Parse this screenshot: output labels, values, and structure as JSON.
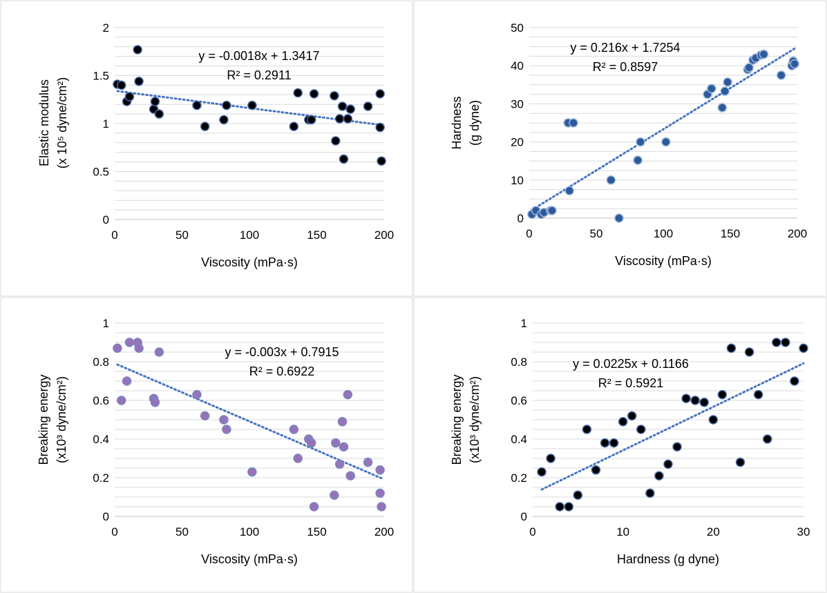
{
  "chart_data": [
    {
      "type": "scatter",
      "title": "",
      "xlabel": "Viscosity (mPa·s)",
      "ylabel_lines": [
        "Elastic modulus",
        "(x 10⁵ dyne/cm²)"
      ],
      "xlim": [
        0,
        200
      ],
      "ylim": [
        0,
        2
      ],
      "xticks": [
        "0",
        "50",
        "100",
        "150",
        "200"
      ],
      "yticks": [
        "0",
        "0.5",
        "1",
        "1.5",
        "2"
      ],
      "equation": "y = -0.0018x + 1.3417",
      "r2": "R² = 0.2911",
      "trend": {
        "slope": -0.0018,
        "intercept": 1.3417,
        "x0": 2,
        "x1": 198
      },
      "marker": {
        "fill": "#000000",
        "stroke": "#4a6aa8"
      },
      "trend_color": "#4472c4",
      "points": [
        [
          2,
          1.41
        ],
        [
          5,
          1.4
        ],
        [
          9,
          1.23
        ],
        [
          11,
          1.28
        ],
        [
          17,
          1.77
        ],
        [
          18,
          1.44
        ],
        [
          29,
          1.15
        ],
        [
          30,
          1.23
        ],
        [
          33,
          1.1
        ],
        [
          61,
          1.19
        ],
        [
          67,
          0.97
        ],
        [
          81,
          1.04
        ],
        [
          83,
          1.19
        ],
        [
          102,
          1.19
        ],
        [
          133,
          0.97
        ],
        [
          136,
          1.32
        ],
        [
          144,
          1.04
        ],
        [
          146,
          1.04
        ],
        [
          148,
          1.31
        ],
        [
          163,
          1.29
        ],
        [
          164,
          0.82
        ],
        [
          167,
          1.05
        ],
        [
          169,
          1.18
        ],
        [
          170,
          0.63
        ],
        [
          173,
          1.05
        ],
        [
          175,
          1.15
        ],
        [
          188,
          1.18
        ],
        [
          197,
          0.96
        ],
        [
          197,
          1.31
        ],
        [
          198,
          0.61
        ]
      ]
    },
    {
      "type": "scatter",
      "title": "",
      "xlabel": "Viscosity (mPa·s)",
      "ylabel_lines": [
        "Hardness",
        "(g dyne)"
      ],
      "xlim": [
        0,
        200
      ],
      "ylim": [
        0,
        50
      ],
      "xticks": [
        "0",
        "50",
        "100",
        "150",
        "200"
      ],
      "yticks": [
        "0",
        "10",
        "20",
        "30",
        "40",
        "50"
      ],
      "equation": "y = 0.216x + 1.7254",
      "r2": "R² = 0.8597",
      "trend": {
        "slope": 0.216,
        "intercept": 1.7254,
        "x0": 2,
        "x1": 198
      },
      "marker": {
        "fill": "#2e5a9c",
        "stroke": "#9bb7dc"
      },
      "trend_color": "#4472c4",
      "points": [
        [
          2,
          1
        ],
        [
          5,
          2
        ],
        [
          9,
          1
        ],
        [
          11,
          1.5
        ],
        [
          16,
          2
        ],
        [
          17,
          2
        ],
        [
          29,
          25
        ],
        [
          30,
          7.2
        ],
        [
          33,
          25
        ],
        [
          61,
          10
        ],
        [
          67,
          0
        ],
        [
          81,
          15.2
        ],
        [
          83,
          20
        ],
        [
          102,
          20
        ],
        [
          133,
          32.5
        ],
        [
          136,
          34
        ],
        [
          144,
          29
        ],
        [
          146,
          33.3
        ],
        [
          148,
          35.7
        ],
        [
          163,
          39
        ],
        [
          164,
          39.5
        ],
        [
          167,
          41.5
        ],
        [
          169,
          42
        ],
        [
          173,
          42.8
        ],
        [
          175,
          43
        ],
        [
          188,
          37.5
        ],
        [
          196,
          40
        ],
        [
          197,
          41.2
        ],
        [
          198,
          40.5
        ]
      ]
    },
    {
      "type": "scatter",
      "title": "",
      "xlabel": "Viscosity (mPa·s)",
      "ylabel_lines": [
        "Breaking energy",
        "(x10³ dyne/cm²)"
      ],
      "xlim": [
        0,
        200
      ],
      "ylim": [
        0,
        1
      ],
      "xticks": [
        "0",
        "50",
        "100",
        "150",
        "200"
      ],
      "yticks": [
        "0",
        "0.2",
        "0.4",
        "0.6",
        "0.8",
        "1"
      ],
      "equation": "y = -0.003x + 0.7915",
      "r2": "R² = 0.6922",
      "trend": {
        "slope": -0.003,
        "intercept": 0.7915,
        "x0": 2,
        "x1": 198
      },
      "marker": {
        "fill": "#9673b8",
        "stroke": "#7a86c0"
      },
      "trend_color": "#4472c4",
      "points": [
        [
          2,
          0.87
        ],
        [
          5,
          0.6
        ],
        [
          9,
          0.7
        ],
        [
          11,
          0.9
        ],
        [
          17,
          0.9
        ],
        [
          18,
          0.87
        ],
        [
          29,
          0.61
        ],
        [
          30,
          0.59
        ],
        [
          33,
          0.85
        ],
        [
          61,
          0.63
        ],
        [
          67,
          0.52
        ],
        [
          81,
          0.5
        ],
        [
          83,
          0.45
        ],
        [
          102,
          0.23
        ],
        [
          133,
          0.45
        ],
        [
          136,
          0.3
        ],
        [
          144,
          0.4
        ],
        [
          146,
          0.38
        ],
        [
          148,
          0.05
        ],
        [
          163,
          0.11
        ],
        [
          164,
          0.38
        ],
        [
          167,
          0.27
        ],
        [
          169,
          0.49
        ],
        [
          170,
          0.36
        ],
        [
          173,
          0.63
        ],
        [
          175,
          0.21
        ],
        [
          188,
          0.28
        ],
        [
          197,
          0.24
        ],
        [
          197,
          0.12
        ],
        [
          198,
          0.05
        ]
      ]
    },
    {
      "type": "scatter",
      "title": "",
      "xlabel": "Hardness (g dyne)",
      "ylabel_lines": [
        "Breaking energy",
        "(x10³ dyne/cm²)"
      ],
      "xlim": [
        0,
        30
      ],
      "ylim": [
        0,
        1
      ],
      "xticks": [
        "0",
        "10",
        "20",
        "30"
      ],
      "yticks": [
        "0",
        "0.2",
        "0.4",
        "0.6",
        "0.8",
        "1"
      ],
      "equation": "y = 0.0225x + 0.1166",
      "r2": "R² = 0.5921",
      "trend": {
        "slope": 0.0225,
        "intercept": 0.1166,
        "x0": 1,
        "x1": 30
      },
      "marker": {
        "fill": "#000000",
        "stroke": "#4a6aa8"
      },
      "trend_color": "#4472c4",
      "points": [
        [
          1,
          0.23
        ],
        [
          2,
          0.3
        ],
        [
          3,
          0.05
        ],
        [
          4,
          0.05
        ],
        [
          5,
          0.11
        ],
        [
          6,
          0.45
        ],
        [
          7,
          0.24
        ],
        [
          8,
          0.38
        ],
        [
          9,
          0.38
        ],
        [
          10,
          0.49
        ],
        [
          11,
          0.52
        ],
        [
          12,
          0.45
        ],
        [
          13,
          0.12
        ],
        [
          14,
          0.21
        ],
        [
          15,
          0.27
        ],
        [
          16,
          0.36
        ],
        [
          17,
          0.61
        ],
        [
          18,
          0.6
        ],
        [
          19,
          0.59
        ],
        [
          20,
          0.5
        ],
        [
          21,
          0.63
        ],
        [
          22,
          0.87
        ],
        [
          23,
          0.28
        ],
        [
          24,
          0.85
        ],
        [
          25,
          0.63
        ],
        [
          26,
          0.4
        ],
        [
          27,
          0.9
        ],
        [
          28,
          0.9
        ],
        [
          29,
          0.7
        ],
        [
          30,
          0.87
        ]
      ]
    }
  ]
}
